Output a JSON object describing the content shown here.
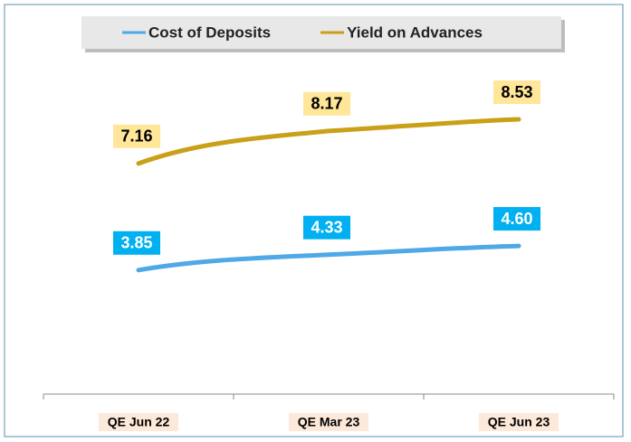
{
  "chart_data": {
    "type": "line",
    "categories": [
      "QE Jun 22",
      "QE Mar 23",
      "QE Jun 23"
    ],
    "series": [
      {
        "name": "Cost of Deposits",
        "color": "#4ea9e6",
        "label_fill": "#00b0f0",
        "label_text": "#ffffff",
        "values": [
          3.85,
          4.33,
          4.6
        ],
        "value_labels": [
          "3.85",
          "4.33",
          "4.60"
        ]
      },
      {
        "name": "Yield on Advances",
        "color": "#c9a018",
        "label_fill": "#ffe699",
        "label_text": "#000000",
        "values": [
          7.16,
          8.17,
          8.53
        ]
      }
    ],
    "ylim": [
      0,
      11
    ],
    "legend": "top"
  }
}
